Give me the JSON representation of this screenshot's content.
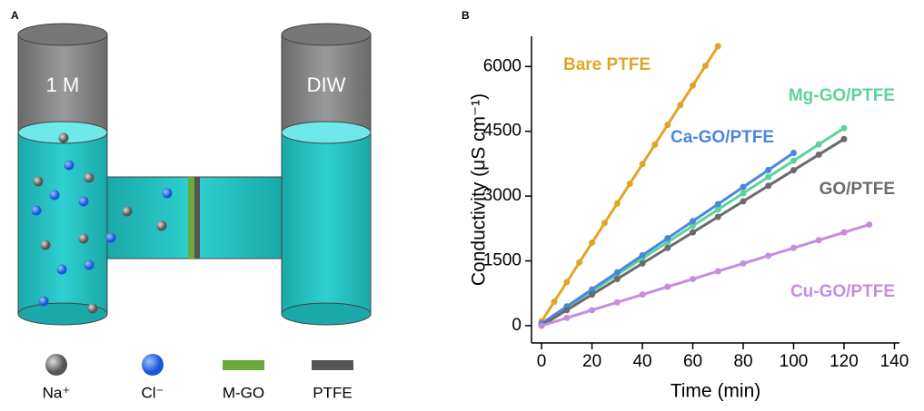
{
  "panel_a": {
    "label": "A",
    "left_label": "1 M",
    "right_label": "DIW",
    "legend": [
      {
        "label": "Na⁺",
        "color": "#777777"
      },
      {
        "label": "Cl⁻",
        "color": "#2f6ff0"
      },
      {
        "label": "M-GO",
        "color": "#6aaa3a"
      },
      {
        "label": "PTFE",
        "color": "#555555"
      }
    ]
  },
  "chart_data": {
    "type": "line",
    "panel_label": "B",
    "x_label": "Time (min)",
    "y_label": "Conductivity (μS cm⁻¹)",
    "xlim": [
      -4,
      142
    ],
    "ylim": [
      -400,
      6700
    ],
    "xticks": [
      0,
      20,
      40,
      60,
      80,
      100,
      120,
      140
    ],
    "yticks": [
      0,
      1500,
      3000,
      4500,
      6000
    ],
    "series": [
      {
        "name": "Bare PTFE",
        "color": "#e0a526",
        "x": [
          0,
          5,
          10,
          15,
          20,
          25,
          30,
          35,
          40,
          45,
          50,
          55,
          60,
          65,
          70
        ],
        "values": [
          100,
          555,
          1010,
          1465,
          1920,
          2375,
          2830,
          3285,
          3740,
          4195,
          4650,
          5105,
          5560,
          6015,
          6470
        ]
      },
      {
        "name": "Mg-GO/PTFE",
        "color": "#5dd39a",
        "x": [
          0,
          10,
          20,
          30,
          40,
          50,
          60,
          70,
          80,
          90,
          100,
          110,
          120
        ],
        "values": [
          50,
          427,
          804,
          1181,
          1558,
          1935,
          2312,
          2689,
          3066,
          3443,
          3820,
          4197,
          4574
        ]
      },
      {
        "name": "Ca-GO/PTFE",
        "color": "#4a86e0",
        "x": [
          0,
          10,
          20,
          30,
          40,
          50,
          60,
          70,
          80,
          90,
          100
        ],
        "values": [
          50,
          445,
          840,
          1235,
          1630,
          2025,
          2420,
          2815,
          3210,
          3605,
          4000
        ]
      },
      {
        "name": "GO/PTFE",
        "color": "#6b6b6b",
        "x": [
          0,
          10,
          20,
          30,
          40,
          50,
          60,
          70,
          80,
          90,
          100,
          110,
          120
        ],
        "values": [
          0,
          360,
          720,
          1080,
          1440,
          1800,
          2160,
          2520,
          2880,
          3240,
          3600,
          3960,
          4320
        ]
      },
      {
        "name": "Cu-GO/PTFE",
        "color": "#c58de0",
        "x": [
          0,
          10,
          20,
          30,
          40,
          50,
          60,
          70,
          80,
          90,
          100,
          110,
          120,
          130
        ],
        "values": [
          0,
          180,
          360,
          540,
          720,
          900,
          1080,
          1260,
          1440,
          1620,
          1800,
          1980,
          2160,
          2340
        ]
      }
    ]
  }
}
